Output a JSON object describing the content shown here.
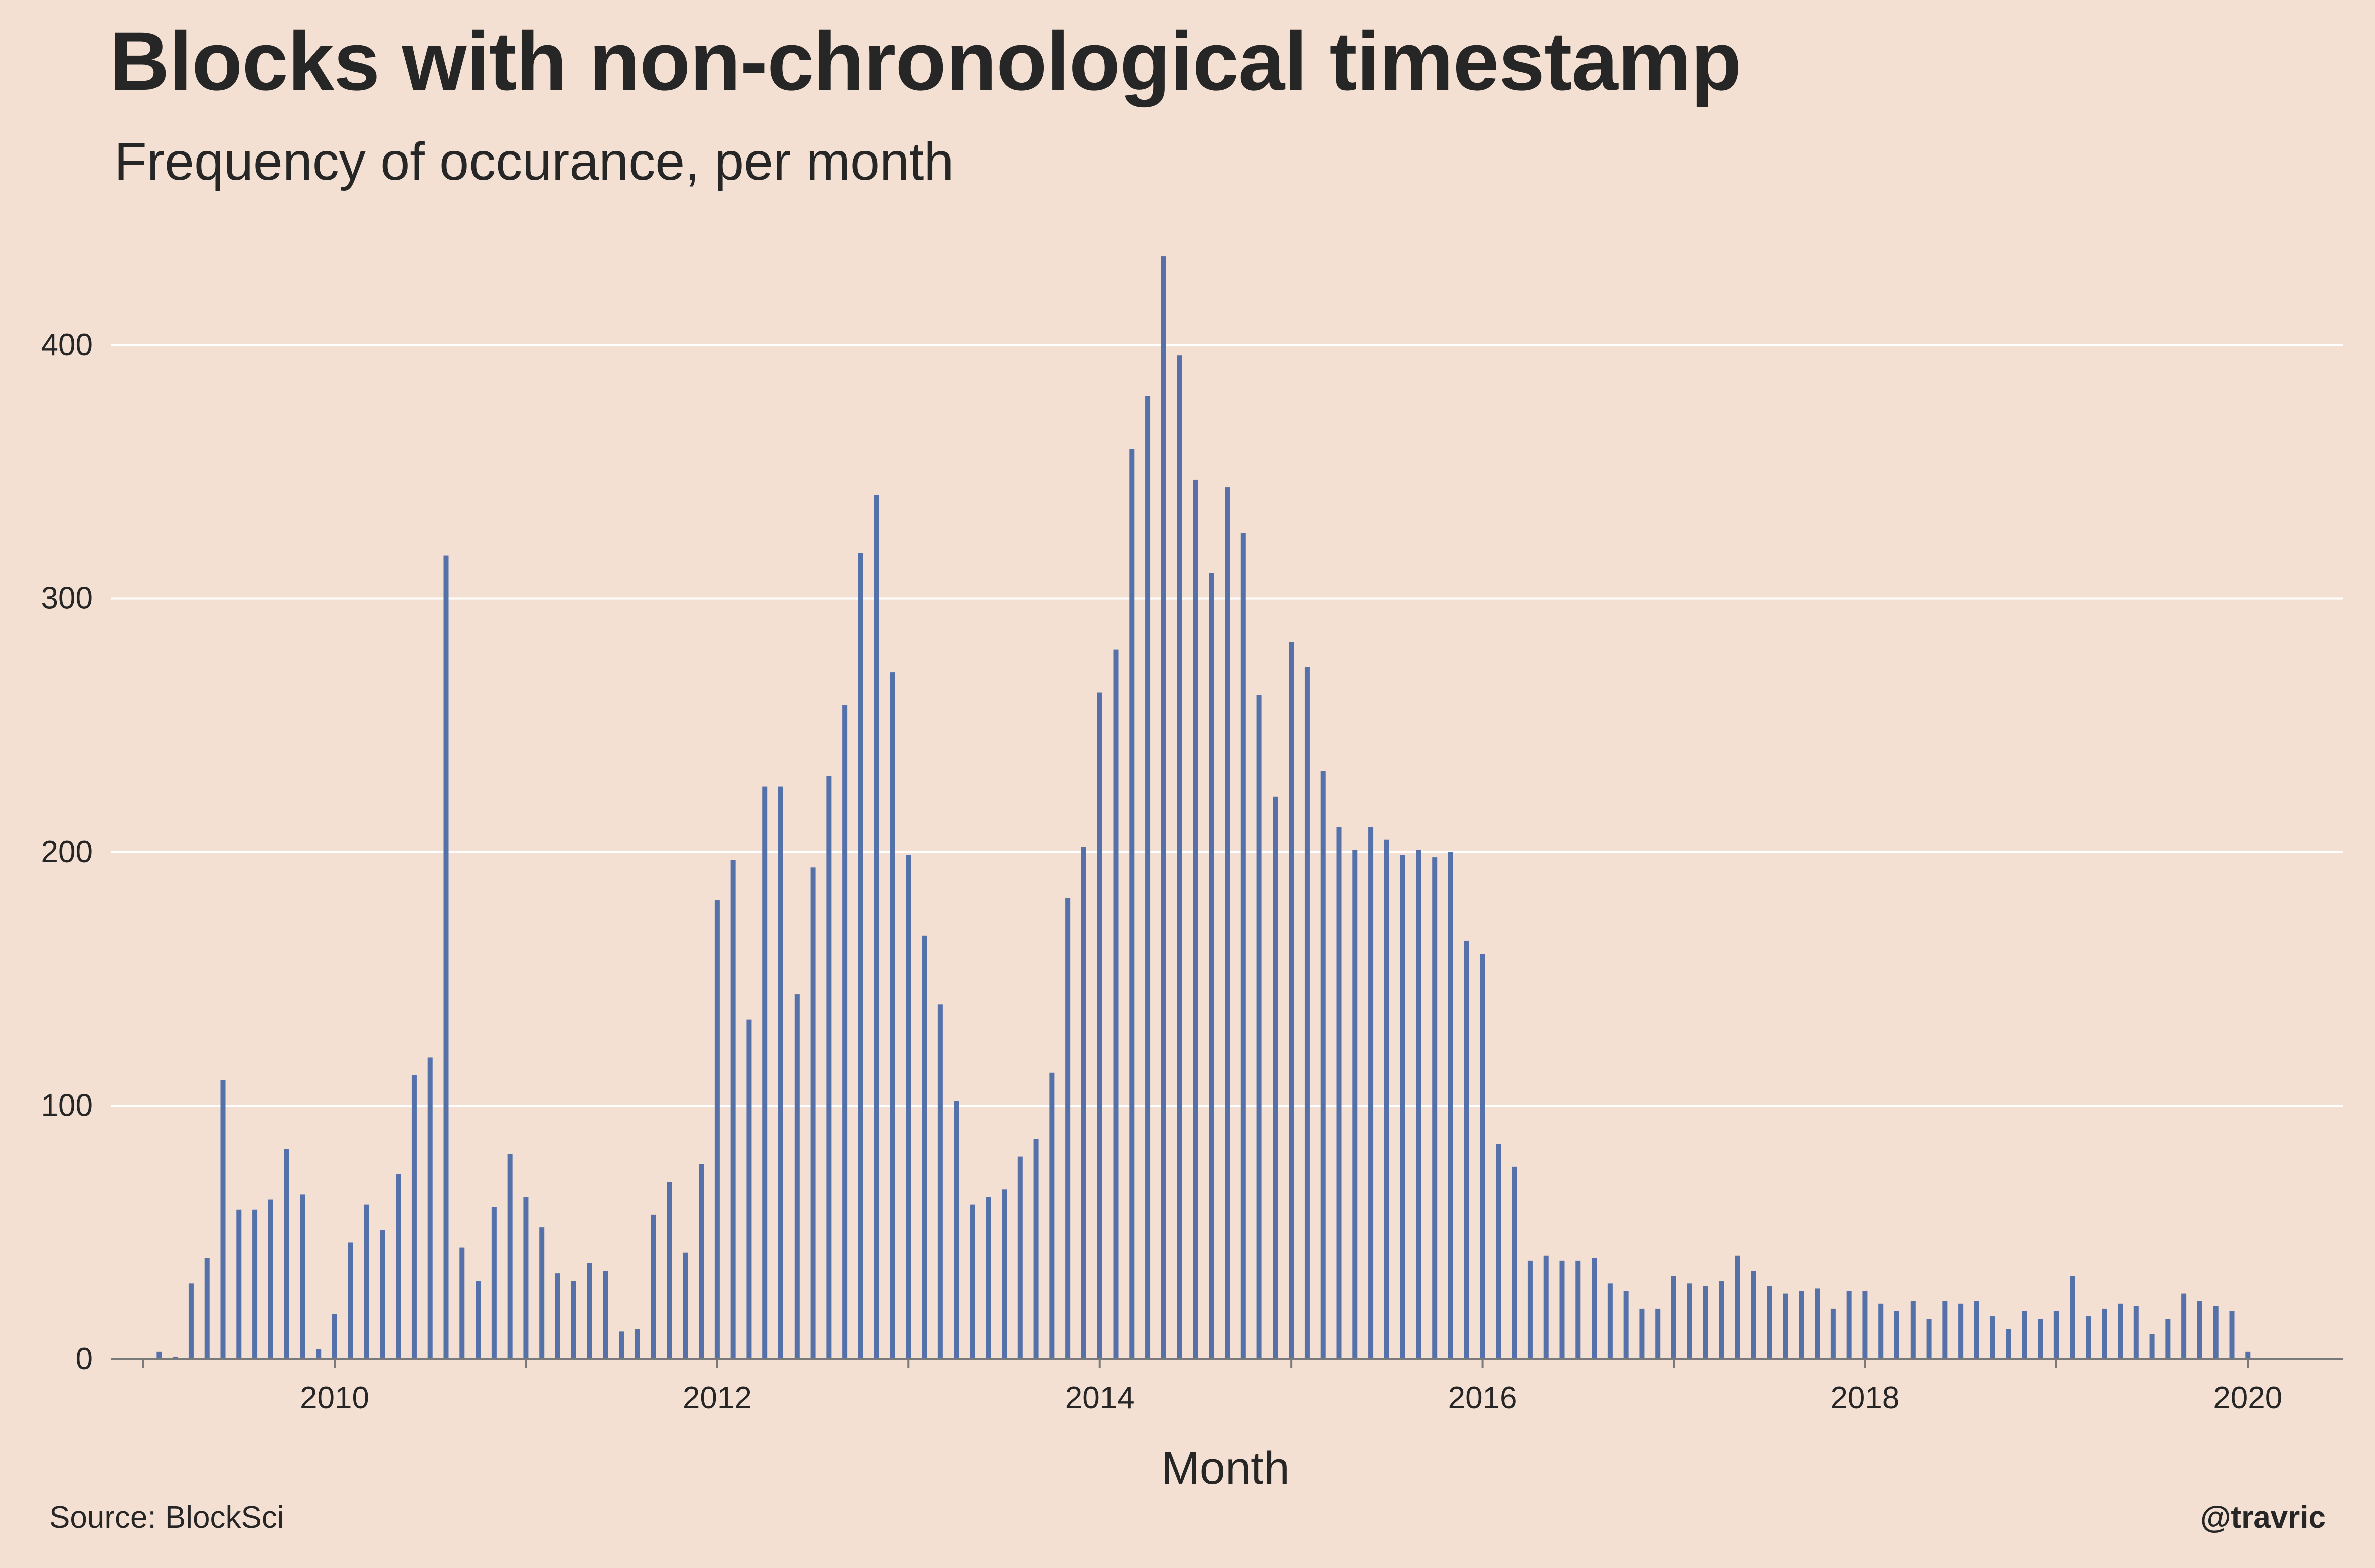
{
  "title": "Blocks with non-chronological timestamp",
  "subtitle": "Frequency of occurance, per month",
  "source": "Source: BlockSci",
  "handle": "@travric",
  "colors": {
    "background": "#f3e0d2",
    "bar": "#5471aa",
    "grid": "#ffffff",
    "axis": "#7a7a7a",
    "text": "#262626"
  },
  "chart_data": {
    "type": "bar",
    "xlabel": "Month",
    "ylabel": "",
    "xlim": [
      "2008-11",
      "2020-07"
    ],
    "ylim": [
      0,
      440
    ],
    "y_ticks": [
      0,
      100,
      200,
      300,
      400
    ],
    "x_ticks": [
      "2010",
      "2012",
      "2014",
      "2016",
      "2018",
      "2020"
    ],
    "grid": true,
    "start_month": "2009-01",
    "values": [
      0,
      3,
      1,
      30,
      40,
      110,
      59,
      59,
      63,
      83,
      65,
      4,
      18,
      46,
      61,
      51,
      73,
      112,
      119,
      317,
      44,
      31,
      60,
      81,
      64,
      52,
      34,
      31,
      38,
      35,
      11,
      12,
      57,
      70,
      42,
      77,
      181,
      197,
      134,
      226,
      226,
      144,
      194,
      230,
      258,
      318,
      341,
      271,
      199,
      167,
      140,
      102,
      61,
      64,
      67,
      80,
      87,
      113,
      182,
      202,
      263,
      280,
      359,
      380,
      435,
      396,
      347,
      310,
      344,
      326,
      262,
      222,
      283,
      273,
      232,
      210,
      201,
      210,
      205,
      199,
      201,
      198,
      200,
      165,
      160,
      85,
      76,
      39,
      41,
      39,
      39,
      40,
      30,
      27,
      20,
      20,
      33,
      30,
      29,
      31,
      41,
      35,
      29,
      26,
      27,
      28,
      20,
      27,
      27,
      22,
      19,
      23,
      16,
      23,
      22,
      23,
      17,
      12,
      19,
      16,
      19,
      33,
      17,
      20,
      22,
      21,
      10,
      16,
      26,
      23,
      21,
      19,
      3
    ]
  }
}
